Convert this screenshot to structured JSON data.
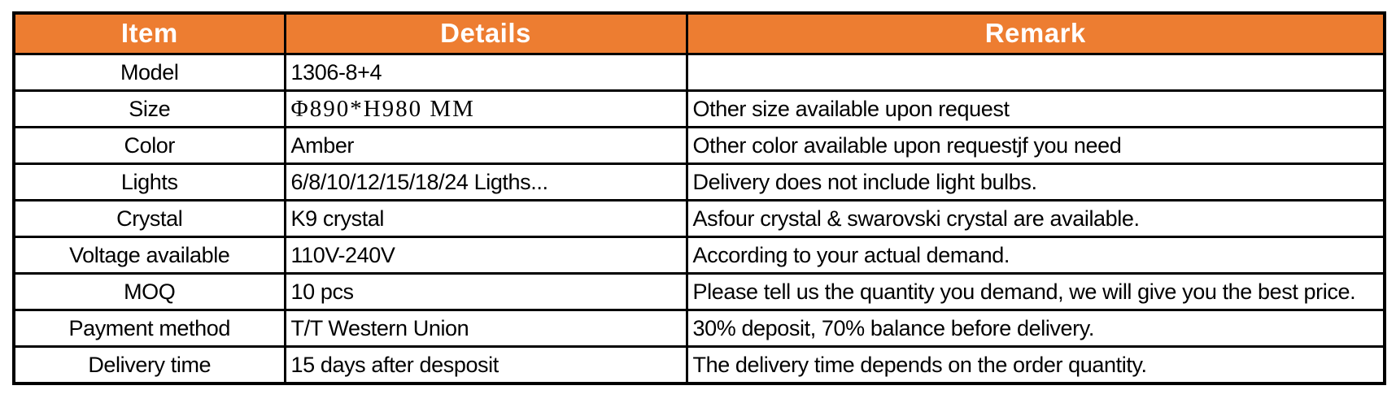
{
  "colors": {
    "header_bg": "#ED7D31",
    "header_text": "#FFFFFF",
    "border": "#000000",
    "body_text": "#000000"
  },
  "table": {
    "headers": [
      {
        "label": "Item"
      },
      {
        "label": "Details"
      },
      {
        "label": "Remark"
      }
    ],
    "rows": [
      {
        "item": "Model",
        "details": "1306-8+4",
        "remark": ""
      },
      {
        "item": "Size",
        "details": "Φ890*H980 MM",
        "remark": "Other size available upon request",
        "details_font": "serif"
      },
      {
        "item": "Color",
        "details": "Amber",
        "remark": "Other color available upon requestjf you need"
      },
      {
        "item": "Lights",
        "details": "6/8/10/12/15/18/24 Ligths...",
        "remark": "Delivery does not include light bulbs."
      },
      {
        "item": "Crystal",
        "details": "K9 crystal",
        "remark": "Asfour crystal & swarovski crystal are available."
      },
      {
        "item": "Voltage available",
        "details": "110V-240V",
        "remark": "According to your actual demand."
      },
      {
        "item": "MOQ",
        "details": "10 pcs",
        "remark": "Please tell us the quantity you demand, we will give you the best price."
      },
      {
        "item": "Payment method",
        "details": "T/T Western Union",
        "remark": "30% deposit, 70% balance before delivery."
      },
      {
        "item": "Delivery time",
        "details": "15 days after desposit",
        "remark": "The delivery time depends on the order quantity."
      }
    ]
  }
}
